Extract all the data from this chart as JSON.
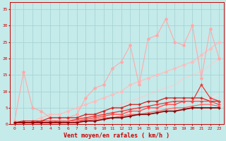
{
  "title": "",
  "xlabel": "Vent moyen/en rafales ( km/h )",
  "xlim": [
    -0.5,
    23.5
  ],
  "ylim": [
    0,
    37
  ],
  "yticks": [
    0,
    5,
    10,
    15,
    20,
    25,
    30,
    35
  ],
  "xticks": [
    0,
    1,
    2,
    3,
    4,
    5,
    6,
    7,
    8,
    9,
    10,
    11,
    12,
    13,
    14,
    15,
    16,
    17,
    18,
    19,
    20,
    21,
    22,
    23
  ],
  "bg_color": "#c5eaea",
  "grid_color": "#a8d4d4",
  "series": [
    {
      "x": [
        0,
        1,
        2,
        3,
        4,
        5,
        6,
        7,
        8,
        9,
        10,
        11,
        12,
        13,
        14,
        15,
        16,
        17,
        18,
        19,
        20,
        21,
        22,
        23
      ],
      "y": [
        1,
        16,
        5,
        4,
        2,
        2,
        2,
        3,
        8,
        11,
        12,
        17,
        19,
        24,
        12,
        26,
        27,
        32,
        25,
        24,
        30,
        14,
        29,
        20
      ],
      "color": "#ffaaaa",
      "lw": 0.8,
      "marker": "D",
      "ms": 2.0,
      "zorder": 3
    },
    {
      "x": [
        0,
        1,
        2,
        3,
        4,
        5,
        6,
        7,
        8,
        9,
        10,
        11,
        12,
        13,
        14,
        15,
        16,
        17,
        18,
        19,
        20,
        21,
        22,
        23
      ],
      "y": [
        1,
        1,
        1,
        2,
        3,
        3,
        4,
        5,
        6,
        7,
        8,
        9,
        10,
        12,
        13,
        14,
        15,
        16,
        17,
        18,
        19,
        21,
        23,
        25
      ],
      "color": "#ffbbbb",
      "lw": 0.8,
      "marker": "D",
      "ms": 2.0,
      "zorder": 2
    },
    {
      "x": [
        0,
        1,
        2,
        3,
        4,
        5,
        6,
        7,
        8,
        9,
        10,
        11,
        12,
        13,
        14,
        15,
        16,
        17,
        18,
        19,
        20,
        21,
        22,
        23
      ],
      "y": [
        0.5,
        1,
        1,
        1,
        1,
        1.5,
        2,
        2,
        2.5,
        3,
        4,
        5,
        6,
        7,
        8,
        9,
        10,
        11,
        12,
        14,
        15,
        16,
        18,
        20
      ],
      "color": "#ffcccc",
      "lw": 0.8,
      "marker": null,
      "ms": 0,
      "zorder": 1
    },
    {
      "x": [
        0,
        1,
        2,
        3,
        4,
        5,
        6,
        7,
        8,
        9,
        10,
        11,
        12,
        13,
        14,
        15,
        16,
        17,
        18,
        19,
        20,
        21,
        22,
        23
      ],
      "y": [
        0.5,
        0.5,
        0.5,
        0.5,
        0.5,
        1,
        1,
        1,
        1,
        1.5,
        2,
        2.5,
        3,
        3.5,
        4,
        4.5,
        5,
        5.5,
        6,
        6.5,
        7,
        7.5,
        8,
        9
      ],
      "color": "#ffdddd",
      "lw": 0.8,
      "marker": null,
      "ms": 0,
      "zorder": 1
    },
    {
      "x": [
        0,
        1,
        2,
        3,
        4,
        5,
        6,
        7,
        8,
        9,
        10,
        11,
        12,
        13,
        14,
        15,
        16,
        17,
        18,
        19,
        20,
        21,
        22,
        23
      ],
      "y": [
        0.5,
        1,
        1,
        1,
        2,
        2,
        2,
        2,
        3,
        3,
        4,
        5,
        5,
        6,
        6,
        7,
        7,
        8,
        8,
        8,
        8,
        8,
        7,
        7
      ],
      "color": "#cc2222",
      "lw": 0.9,
      "marker": "+",
      "ms": 3,
      "zorder": 4
    },
    {
      "x": [
        0,
        1,
        2,
        3,
        4,
        5,
        6,
        7,
        8,
        9,
        10,
        11,
        12,
        13,
        14,
        15,
        16,
        17,
        18,
        19,
        20,
        21,
        22,
        23
      ],
      "y": [
        0.5,
        0.5,
        0.5,
        1,
        1,
        1,
        1,
        1.5,
        2,
        2.5,
        3,
        3.5,
        4,
        4.5,
        5,
        5.5,
        6,
        6.5,
        7,
        7,
        7,
        12,
        8,
        7
      ],
      "color": "#ee3333",
      "lw": 0.9,
      "marker": "+",
      "ms": 3,
      "zorder": 4
    },
    {
      "x": [
        0,
        1,
        2,
        3,
        4,
        5,
        6,
        7,
        8,
        9,
        10,
        11,
        12,
        13,
        14,
        15,
        16,
        17,
        18,
        19,
        20,
        21,
        22,
        23
      ],
      "y": [
        0.5,
        0.5,
        0.5,
        0.5,
        0.5,
        1,
        1,
        1,
        1.5,
        2,
        2.5,
        3,
        3,
        4,
        4,
        5,
        5,
        6,
        6,
        7,
        7,
        7,
        7,
        6
      ],
      "color": "#ff4444",
      "lw": 0.9,
      "marker": "+",
      "ms": 3,
      "zorder": 4
    },
    {
      "x": [
        0,
        1,
        2,
        3,
        4,
        5,
        6,
        7,
        8,
        9,
        10,
        11,
        12,
        13,
        14,
        15,
        16,
        17,
        18,
        19,
        20,
        21,
        22,
        23
      ],
      "y": [
        0.5,
        0.5,
        0.5,
        0.5,
        0.5,
        0.5,
        1,
        1,
        1,
        1.5,
        2,
        2,
        2.5,
        3,
        3,
        3.5,
        4,
        4.5,
        5,
        5,
        5.5,
        6,
        6,
        5.5
      ],
      "color": "#ff6666",
      "lw": 0.9,
      "marker": "+",
      "ms": 3,
      "zorder": 4
    },
    {
      "x": [
        0,
        1,
        2,
        3,
        4,
        5,
        6,
        7,
        8,
        9,
        10,
        11,
        12,
        13,
        14,
        15,
        16,
        17,
        18,
        19,
        20,
        21,
        22,
        23
      ],
      "y": [
        0.5,
        0.5,
        0.5,
        0.5,
        0.5,
        0.5,
        0.5,
        0.5,
        1,
        1,
        1.5,
        2,
        2,
        2.5,
        3,
        3,
        3.5,
        4,
        4,
        4.5,
        5,
        5,
        5,
        5
      ],
      "color": "#880000",
      "lw": 1.2,
      "marker": "+",
      "ms": 3,
      "zorder": 5
    }
  ]
}
